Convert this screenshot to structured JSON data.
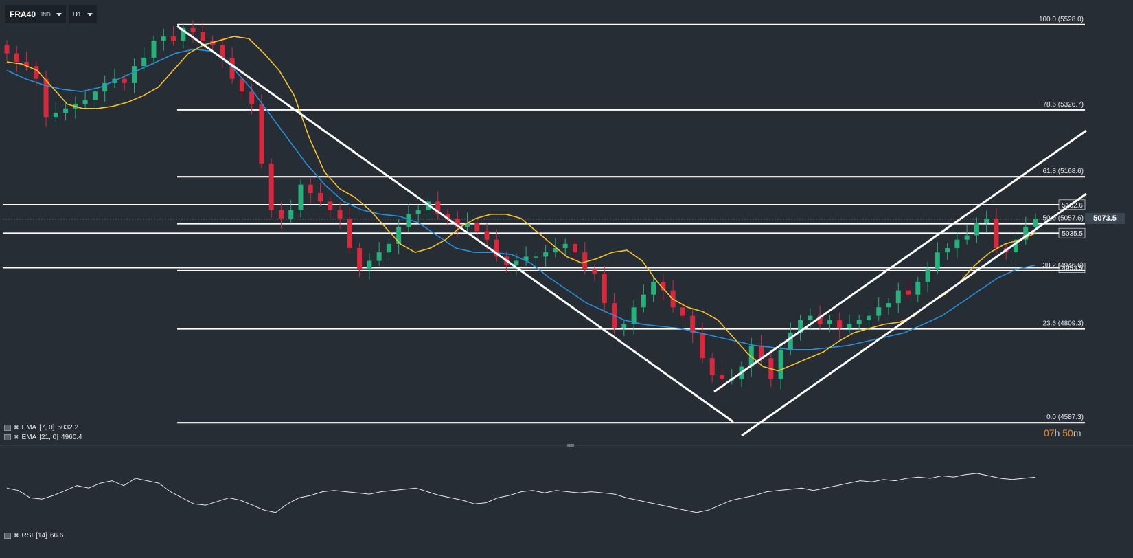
{
  "toolbar": {
    "symbol": "FRA40",
    "instrument_type": "IND",
    "timeframe": "D1"
  },
  "indicators": [
    {
      "label": "EMA",
      "params": "[7, 0]",
      "value": "5032.2",
      "color": "#f4c430"
    },
    {
      "label": "EMA",
      "params": "[21, 0]",
      "value": "4960.4",
      "color": "#2a8fd6"
    }
  ],
  "rsi": {
    "label": "RSI",
    "params": "[14]",
    "value": "66.6"
  },
  "current_price": "5073.5",
  "timer": {
    "hours": "07",
    "h_unit": "h",
    "minutes": "50",
    "m_unit": "m"
  },
  "colors": {
    "background": "#262d35",
    "bull": "#26b07a",
    "bear": "#d8283c",
    "lines": "#ffffff",
    "ema_fast": "#f4c430",
    "ema_slow": "#2a8fd6",
    "timer": "#f08a24"
  },
  "chart_data": {
    "type": "candlestick",
    "ylim": [
      4560,
      5570
    ],
    "fib_levels": [
      {
        "level": "100.0",
        "price": 5528.0,
        "label": "100.0 (5528.0)"
      },
      {
        "level": "78.6",
        "price": 5326.7,
        "label": "78.6 (5326.7)"
      },
      {
        "level": "61.8",
        "price": 5168.6,
        "label": "61.8 (5168.6)"
      },
      {
        "level": "50.0",
        "price": 5057.6,
        "label": "50.0 (5057.6)"
      },
      {
        "level": "38.2",
        "price": 4946.6,
        "label": "38.2 (4946.6)"
      },
      {
        "level": "23.6",
        "price": 4809.3,
        "label": "23.6 (4809.3)"
      },
      {
        "level": "0.0",
        "price": 4587.3,
        "label": "0.0 (4587.3)"
      }
    ],
    "horizontal_lines": [
      {
        "price": 5102.6,
        "label": "5102.6"
      },
      {
        "price": 5035.5,
        "label": "5035.5"
      },
      {
        "price": 4953.5,
        "label": "4953.5"
      }
    ],
    "candles_close": [
      5460,
      5440,
      5430,
      5400,
      5310,
      5320,
      5330,
      5340,
      5350,
      5370,
      5390,
      5400,
      5390,
      5430,
      5450,
      5490,
      5500,
      5490,
      5520,
      5510,
      5490,
      5480,
      5450,
      5400,
      5370,
      5340,
      5200,
      5090,
      5070,
      5090,
      5150,
      5130,
      5110,
      5090,
      5070,
      5000,
      4950,
      4970,
      4990,
      5010,
      5050,
      5080,
      5090,
      5110,
      5080,
      5070,
      5050,
      5060,
      5040,
      5020,
      4980,
      4960,
      4970,
      4980,
      4980,
      4990,
      5000,
      5010,
      4990,
      4950,
      4940,
      4870,
      4810,
      4820,
      4860,
      4890,
      4920,
      4900,
      4860,
      4840,
      4800,
      4740,
      4700,
      4690,
      4690,
      4720,
      4770,
      4740,
      4690,
      4760,
      4800,
      4830,
      4840,
      4820,
      4830,
      4810,
      4820,
      4830,
      4840,
      4860,
      4870,
      4900,
      4890,
      4920,
      4950,
      4990,
      5000,
      5020,
      5030,
      5060,
      5070,
      5000,
      4990,
      5020,
      5050,
      5070
    ],
    "ema7": [
      5440,
      5435,
      5420,
      5380,
      5340,
      5330,
      5330,
      5335,
      5345,
      5360,
      5380,
      5420,
      5460,
      5480,
      5490,
      5500,
      5495,
      5460,
      5420,
      5360,
      5260,
      5180,
      5140,
      5120,
      5090,
      5050,
      5010,
      4990,
      5000,
      5020,
      5050,
      5070,
      5080,
      5080,
      5070,
      5040,
      5010,
      4980,
      4965,
      4975,
      4990,
      4995,
      4970,
      4920,
      4880,
      4860,
      4850,
      4830,
      4790,
      4750,
      4720,
      4710,
      4725,
      4740,
      4755,
      4780,
      4800,
      4810,
      4820,
      4825,
      4840,
      4870,
      4890,
      4920,
      4960,
      4990,
      5010,
      5020,
      5035
    ],
    "ema21": [
      5420,
      5400,
      5385,
      5375,
      5370,
      5380,
      5400,
      5420,
      5440,
      5460,
      5470,
      5465,
      5430,
      5380,
      5320,
      5260,
      5200,
      5150,
      5110,
      5090,
      5080,
      5075,
      5060,
      5030,
      5000,
      4990,
      4990,
      4985,
      4965,
      4930,
      4900,
      4870,
      4850,
      4830,
      4820,
      4815,
      4810,
      4800,
      4790,
      4780,
      4770,
      4765,
      4760,
      4760,
      4765,
      4770,
      4780,
      4790,
      4800,
      4820,
      4840,
      4870,
      4900,
      4930,
      4950,
      4960
    ]
  }
}
